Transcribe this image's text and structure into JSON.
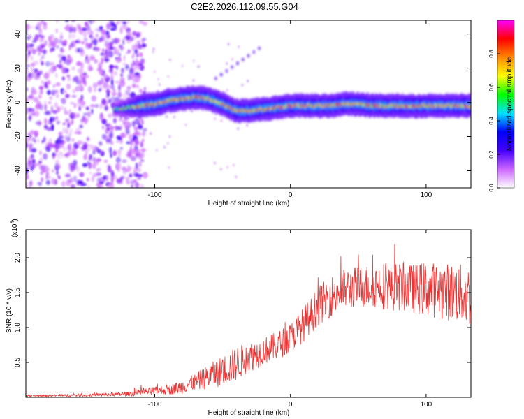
{
  "figure_title": "C2E2.2026.112.09.55.G04",
  "chart_data": [
    {
      "type": "heatmap",
      "title": "",
      "xlabel": "Height of straight line (km)",
      "ylabel": "Frequency (Hz)",
      "xlim": [
        -195,
        133
      ],
      "ylim": [
        -50,
        48
      ],
      "xticks": [
        -100,
        0,
        100
      ],
      "xtick_labels": [
        "-100",
        "0",
        "100"
      ],
      "yticks": [
        -40,
        -20,
        0,
        20,
        40
      ],
      "ytick_labels": [
        "-40",
        "-20",
        "0",
        "20",
        "40"
      ],
      "noise_region_x": [
        -195,
        -115
      ],
      "ridge": {
        "x": [
          -130,
          -120,
          -110,
          -100,
          -90,
          -80,
          -70,
          -60,
          -50,
          -40,
          -30,
          -20,
          -10,
          0,
          10,
          20,
          30,
          40,
          50,
          60,
          70,
          80,
          90,
          100,
          110,
          120,
          133
        ],
        "freq": [
          -4,
          -3,
          -2,
          -1,
          1,
          2,
          3,
          2,
          -1,
          -5,
          -5,
          -4,
          -3,
          -2,
          -2,
          -2,
          -2,
          -1,
          -1,
          -2,
          -2,
          -2,
          -2,
          -2,
          -2,
          -2,
          -2
        ]
      },
      "colorbar": {
        "label": "Normalized spectral amplitude",
        "range": [
          0,
          1
        ],
        "ticks": [
          0.0,
          0.2,
          0.4,
          0.6,
          0.8
        ],
        "tick_labels": [
          "0.0",
          "0.2",
          "0.4",
          "0.6",
          "0.8"
        ],
        "colors": [
          "#ffffff",
          "#cc66ff",
          "#4400ff",
          "#0000ff",
          "#00e0ff",
          "#00ff00",
          "#ffff00",
          "#ff8800",
          "#ff0000",
          "#ff00ff"
        ]
      }
    },
    {
      "type": "line",
      "title": "",
      "xlabel": "Height of straight line (km)",
      "ylabel": "SNR (10 * v/v)",
      "scale_note": "(x10",
      "scale_exp": "4",
      "scale_close": ")",
      "xlim": [
        -195,
        133
      ],
      "ylim": [
        0,
        2.4
      ],
      "xticks": [
        -100,
        0,
        100
      ],
      "xtick_labels": [
        "-100",
        "0",
        "100"
      ],
      "yticks": [
        0.5,
        1.0,
        1.5,
        2.0
      ],
      "ytick_labels": [
        "0.5",
        "1.0",
        "1.5",
        "2.0"
      ],
      "color": "#ee3333",
      "envelope": {
        "x": [
          -195,
          -150,
          -120,
          -110,
          -100,
          -90,
          -80,
          -70,
          -60,
          -50,
          -40,
          -30,
          -20,
          -10,
          0,
          10,
          20,
          30,
          40,
          50,
          60,
          70,
          80,
          90,
          100,
          110,
          120,
          133
        ],
        "mean": [
          0.02,
          0.03,
          0.05,
          0.07,
          0.09,
          0.11,
          0.15,
          0.22,
          0.3,
          0.38,
          0.48,
          0.58,
          0.66,
          0.74,
          0.85,
          1.05,
          1.3,
          1.45,
          1.55,
          1.58,
          1.6,
          1.6,
          1.58,
          1.56,
          1.55,
          1.53,
          1.5,
          1.45
        ],
        "spread": [
          0.01,
          0.02,
          0.03,
          0.05,
          0.06,
          0.07,
          0.1,
          0.12,
          0.18,
          0.22,
          0.25,
          0.22,
          0.2,
          0.2,
          0.22,
          0.25,
          0.28,
          0.3,
          0.3,
          0.3,
          0.32,
          0.35,
          0.35,
          0.35,
          0.4,
          0.4,
          0.42,
          0.45
        ]
      }
    }
  ]
}
